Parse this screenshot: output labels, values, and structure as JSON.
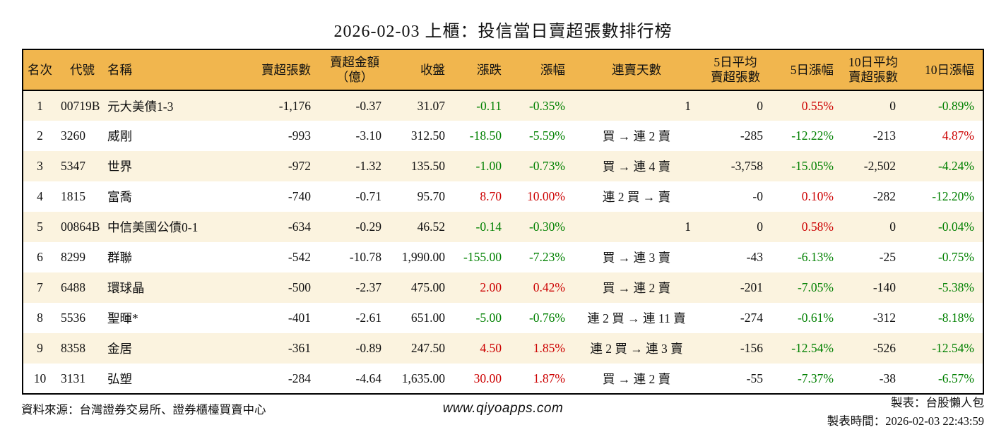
{
  "title": "2026-02-03 上櫃：投信當日賣超張數排行榜",
  "columns": [
    {
      "key": "rank",
      "label": "名次"
    },
    {
      "key": "code",
      "label": "代號"
    },
    {
      "key": "name",
      "label": "名稱"
    },
    {
      "key": "sell_shares",
      "label": "賣超張數"
    },
    {
      "key": "sell_amount",
      "label": "賣超金額\n（億）"
    },
    {
      "key": "close",
      "label": "收盤"
    },
    {
      "key": "change",
      "label": "漲跌"
    },
    {
      "key": "change_pct",
      "label": "漲幅"
    },
    {
      "key": "sell_streak",
      "label": "連賣天數"
    },
    {
      "key": "avg5_sell",
      "label": "5日平均\n賣超張數"
    },
    {
      "key": "pct5",
      "label": "5日漲幅"
    },
    {
      "key": "avg10_sell",
      "label": "10日平均\n賣超張數"
    },
    {
      "key": "pct10",
      "label": "10日漲幅"
    }
  ],
  "rows": [
    {
      "rank": "1",
      "code": "00719B",
      "name": "元大美債1-3",
      "sell_shares": "-1,176",
      "sell_amount": "-0.37",
      "close": "31.07",
      "change": "-0.11",
      "change_pct": "-0.35%",
      "sell_streak": "1",
      "avg5_sell": "0",
      "pct5": "0.55%",
      "avg10_sell": "0",
      "pct10": "-0.89%"
    },
    {
      "rank": "2",
      "code": "3260",
      "name": "威剛",
      "sell_shares": "-993",
      "sell_amount": "-3.10",
      "close": "312.50",
      "change": "-18.50",
      "change_pct": "-5.59%",
      "sell_streak": "買 → 連 2 賣",
      "avg5_sell": "-285",
      "pct5": "-12.22%",
      "avg10_sell": "-213",
      "pct10": "4.87%"
    },
    {
      "rank": "3",
      "code": "5347",
      "name": "世界",
      "sell_shares": "-972",
      "sell_amount": "-1.32",
      "close": "135.50",
      "change": "-1.00",
      "change_pct": "-0.73%",
      "sell_streak": "買 → 連 4 賣",
      "avg5_sell": "-3,758",
      "pct5": "-15.05%",
      "avg10_sell": "-2,502",
      "pct10": "-4.24%"
    },
    {
      "rank": "4",
      "code": "1815",
      "name": "富喬",
      "sell_shares": "-740",
      "sell_amount": "-0.71",
      "close": "95.70",
      "change": "8.70",
      "change_pct": "10.00%",
      "sell_streak": "連 2 買 → 賣",
      "avg5_sell": "-0",
      "pct5": "0.10%",
      "avg10_sell": "-282",
      "pct10": "-12.20%"
    },
    {
      "rank": "5",
      "code": "00864B",
      "name": "中信美國公債0-1",
      "sell_shares": "-634",
      "sell_amount": "-0.29",
      "close": "46.52",
      "change": "-0.14",
      "change_pct": "-0.30%",
      "sell_streak": "1",
      "avg5_sell": "0",
      "pct5": "0.58%",
      "avg10_sell": "0",
      "pct10": "-0.04%"
    },
    {
      "rank": "6",
      "code": "8299",
      "name": "群聯",
      "sell_shares": "-542",
      "sell_amount": "-10.78",
      "close": "1,990.00",
      "change": "-155.00",
      "change_pct": "-7.23%",
      "sell_streak": "買 → 連 3 賣",
      "avg5_sell": "-43",
      "pct5": "-6.13%",
      "avg10_sell": "-25",
      "pct10": "-0.75%"
    },
    {
      "rank": "7",
      "code": "6488",
      "name": "環球晶",
      "sell_shares": "-500",
      "sell_amount": "-2.37",
      "close": "475.00",
      "change": "2.00",
      "change_pct": "0.42%",
      "sell_streak": "買 → 連 2 賣",
      "avg5_sell": "-201",
      "pct5": "-7.05%",
      "avg10_sell": "-140",
      "pct10": "-5.38%"
    },
    {
      "rank": "8",
      "code": "5536",
      "name": "聖暉*",
      "sell_shares": "-401",
      "sell_amount": "-2.61",
      "close": "651.00",
      "change": "-5.00",
      "change_pct": "-0.76%",
      "sell_streak": "連 2 買 → 連 11 賣",
      "avg5_sell": "-274",
      "pct5": "-0.61%",
      "avg10_sell": "-312",
      "pct10": "-8.18%"
    },
    {
      "rank": "9",
      "code": "8358",
      "name": "金居",
      "sell_shares": "-361",
      "sell_amount": "-0.89",
      "close": "247.50",
      "change": "4.50",
      "change_pct": "1.85%",
      "sell_streak": "連 2 買 → 連 3 賣",
      "avg5_sell": "-156",
      "pct5": "-12.54%",
      "avg10_sell": "-526",
      "pct10": "-12.54%"
    },
    {
      "rank": "10",
      "code": "3131",
      "name": "弘塑",
      "sell_shares": "-284",
      "sell_amount": "-4.64",
      "close": "1,635.00",
      "change": "30.00",
      "change_pct": "1.87%",
      "sell_streak": "買 → 連 2 賣",
      "avg5_sell": "-55",
      "pct5": "-7.37%",
      "avg10_sell": "-38",
      "pct10": "-6.57%"
    }
  ],
  "footer": {
    "source": "資料來源：台灣證券交易所、證券櫃檯買賣中心",
    "website": "www.qiyoapps.com",
    "creator": "製表：台股懶人包",
    "created_time": "製表時間：2026-02-03 22:43:59"
  },
  "colors": {
    "up": "#cc0000",
    "down": "#008000",
    "header_bg": "#f1b64e",
    "row_alt_bg": "#fbf3df",
    "border": "#000000"
  }
}
